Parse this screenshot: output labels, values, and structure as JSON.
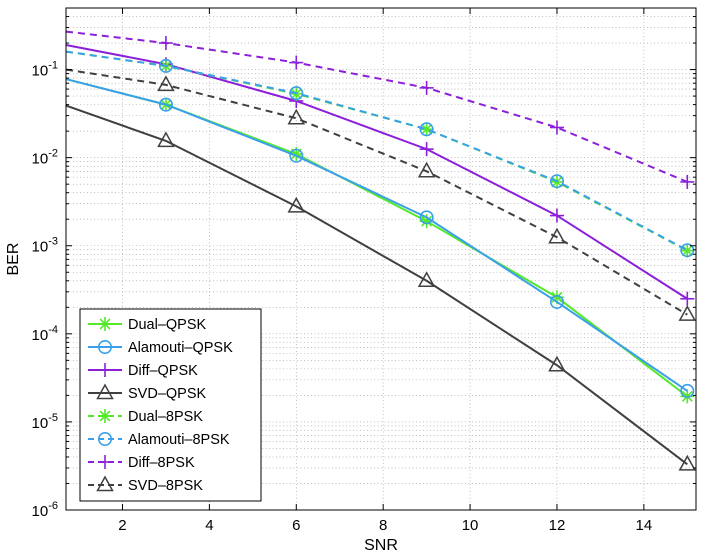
{
  "chart_data": {
    "type": "line",
    "title": "",
    "xlabel": "SNR",
    "ylabel": "BER",
    "xscale": "linear",
    "yscale": "log",
    "xlim": [
      0.7,
      15.2
    ],
    "ylim": [
      1e-06,
      0.5
    ],
    "grid": true,
    "legend_position": "bottom-left",
    "x_ticks": [
      2,
      4,
      6,
      8,
      10,
      12,
      14
    ],
    "x_tick_labels": [
      "2",
      "4",
      "6",
      "8",
      "10",
      "12",
      "14"
    ],
    "y_ticks": [
      1e-06,
      1e-05,
      0.0001,
      0.001,
      0.01,
      0.1
    ],
    "y_tick_labels": [
      {
        "base": "10",
        "exp": "-6"
      },
      {
        "base": "10",
        "exp": "-5"
      },
      {
        "base": "10",
        "exp": "-4"
      },
      {
        "base": "10",
        "exp": "-3"
      },
      {
        "base": "10",
        "exp": "-2"
      },
      {
        "base": "10",
        "exp": "-1"
      }
    ],
    "x": [
      0.7,
      3,
      6,
      9,
      12,
      15
    ],
    "series": [
      {
        "name": "Dual–QPSK",
        "color": "#55e82a",
        "dash": "solid",
        "marker": "star",
        "values": [
          0.078,
          0.04,
          0.011,
          0.0019,
          0.00026,
          1.95e-05
        ]
      },
      {
        "name": "Alamouti–QPSK",
        "color": "#3aa0ea",
        "dash": "solid",
        "marker": "circle",
        "values": [
          0.078,
          0.04,
          0.0105,
          0.0021,
          0.00023,
          2.25e-05
        ]
      },
      {
        "name": "Diff–QPSK",
        "color": "#8c1fd9",
        "dash": "solid",
        "marker": "plus",
        "values": [
          0.19,
          0.115,
          0.044,
          0.0125,
          0.0022,
          0.00025
        ]
      },
      {
        "name": "SVD–QPSK",
        "color": "#404040",
        "dash": "solid",
        "marker": "triangle",
        "values": [
          0.039,
          0.0155,
          0.0028,
          0.0004,
          4.4e-05,
          3.3e-06
        ]
      },
      {
        "name": "Dual–8PSK",
        "color": "#55e82a",
        "dash": "dashed",
        "marker": "star",
        "values": [
          0.16,
          0.11,
          0.053,
          0.021,
          0.0053,
          0.00088
        ]
      },
      {
        "name": "Alamouti–8PSK",
        "color": "#3aa0ea",
        "dash": "dashed",
        "marker": "circle",
        "values": [
          0.16,
          0.11,
          0.054,
          0.021,
          0.0054,
          0.00089
        ]
      },
      {
        "name": "Diff–8PSK",
        "color": "#8c1fd9",
        "dash": "dashed",
        "marker": "plus",
        "values": [
          0.27,
          0.2,
          0.12,
          0.062,
          0.022,
          0.0053
        ]
      },
      {
        "name": "SVD–8PSK",
        "color": "#404040",
        "dash": "dashed",
        "marker": "triangle",
        "values": [
          0.1,
          0.067,
          0.028,
          0.007,
          0.00125,
          0.000165
        ]
      }
    ]
  }
}
